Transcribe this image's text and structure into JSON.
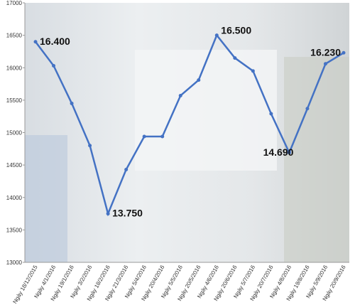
{
  "chart_data": {
    "type": "line",
    "categories": [
      "Ngày 18/12/2015",
      "Ngày 4/1/2016",
      "Ngày 19/1/2016",
      "Ngày 3/2/2016",
      "Ngày 18/2/2016",
      "Ngày 21/3/2016",
      "Ngày 5/4/2016",
      "Ngày 20/4/2016",
      "Ngày 5/5/2016",
      "Ngày 20/5/2016",
      "Ngày 4/6/2016",
      "Ngày 20/6/2016",
      "Ngày 5/7/2016",
      "Ngày 20/7/2016",
      "Ngày 4/8/2016",
      "Ngày 19/8/2016",
      "Ngày 5/9/2016",
      "Ngày 20/9/2016"
    ],
    "series": [
      {
        "color": "#4472c4",
        "values": [
          16400,
          16030,
          15450,
          14800,
          13750,
          14430,
          14940,
          14940,
          15570,
          15810,
          16500,
          16150,
          15950,
          15290,
          14690,
          15370,
          16060,
          16230
        ],
        "value_labels": [
          "16.400",
          null,
          null,
          null,
          "13.750",
          null,
          null,
          null,
          null,
          null,
          "16.500",
          null,
          null,
          null,
          "14.690",
          null,
          null,
          "16.230"
        ]
      }
    ],
    "ylim": [
      13000,
      17000
    ],
    "yticks": [
      13000,
      13500,
      14000,
      14500,
      15000,
      15500,
      16000,
      16500,
      17000
    ]
  }
}
